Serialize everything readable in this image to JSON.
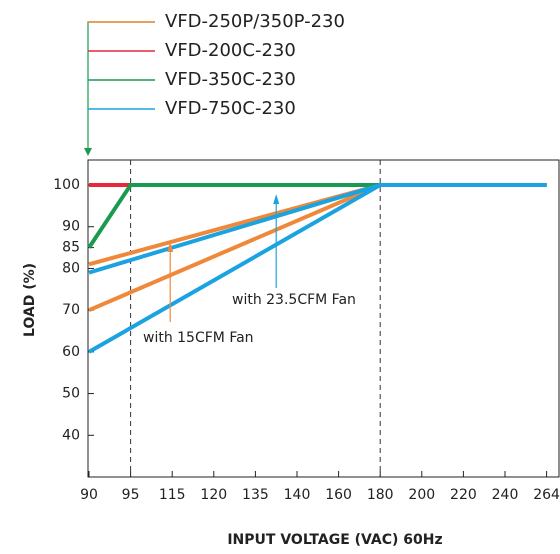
{
  "chart_data": {
    "type": "line",
    "xlabel": "INPUT VOLTAGE (VAC) 60Hz",
    "ylabel": "LOAD (%)",
    "categories": [
      "90",
      "95",
      "115",
      "120",
      "135",
      "140",
      "160",
      "180",
      "200",
      "220",
      "240",
      "264"
    ],
    "ylim": [
      30,
      106
    ],
    "yticks": [
      40,
      50,
      60,
      70,
      80,
      85,
      90,
      100
    ],
    "series": [
      {
        "name": "VFD-250P/350P-230",
        "color": "#f0883a",
        "lines": [
          {
            "x": [
              "90",
              "180",
              "264"
            ],
            "values": [
              81,
              100,
              100
            ]
          },
          {
            "x": [
              "90",
              "180",
              "264"
            ],
            "values": [
              70,
              100,
              100
            ]
          }
        ]
      },
      {
        "name": "VFD-200C-230",
        "color": "#e8273a",
        "lines": [
          {
            "x": [
              "90",
              "264"
            ],
            "values": [
              100,
              100
            ]
          }
        ]
      },
      {
        "name": "VFD-350C-230",
        "color": "#1a9a50",
        "lines": [
          {
            "x": [
              "90",
              "95",
              "264"
            ],
            "values": [
              85,
              100,
              100
            ]
          }
        ]
      },
      {
        "name": "VFD-750C-230",
        "color": "#1aa3e0",
        "lines": [
          {
            "x": [
              "90",
              "180",
              "264"
            ],
            "values": [
              79,
              100,
              100
            ]
          },
          {
            "x": [
              "90",
              "180",
              "264"
            ],
            "values": [
              60,
              100,
              100
            ]
          }
        ]
      }
    ],
    "annotations": [
      "with 15CFM Fan",
      "with 23.5CFM Fan"
    ]
  }
}
